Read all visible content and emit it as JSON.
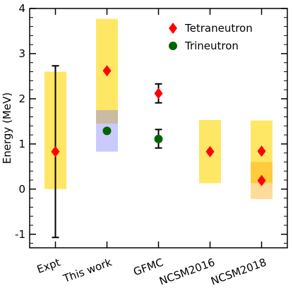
{
  "chart_data": {
    "type": "scatter",
    "title": "",
    "xlabel": "",
    "ylabel": "Energy (MeV)",
    "ylim": [
      -1.3,
      4.0
    ],
    "yticks": [
      -1,
      0,
      1,
      2,
      3,
      4
    ],
    "categories": [
      "Expt",
      "This work",
      "GFMC",
      "NCSM2016",
      "NCSM2018"
    ],
    "legend": {
      "placement": "top-right",
      "entries": [
        {
          "label": "Tetraneutron",
          "marker": "diamond",
          "color": "#ff0000"
        },
        {
          "label": "Trineutron",
          "marker": "circle",
          "color": "#006400"
        }
      ]
    },
    "bands": [
      {
        "category": "Expt",
        "low": 0.0,
        "high": 2.6,
        "color": "#ffd700",
        "opacity": 0.6
      },
      {
        "category": "This work",
        "low": 1.45,
        "high": 3.77,
        "color": "#ffd700",
        "opacity": 0.6
      },
      {
        "category": "This work",
        "low": 0.83,
        "high": 1.75,
        "color": "#7b7bff",
        "opacity": 0.4
      },
      {
        "category": "NCSM2016",
        "low": 0.13,
        "high": 1.53,
        "color": "#ffd700",
        "opacity": 0.6
      },
      {
        "category": "NCSM2018",
        "low": 0.13,
        "high": 1.52,
        "color": "#ffd700",
        "opacity": 0.6
      },
      {
        "category": "NCSM2018",
        "low": -0.22,
        "high": 0.6,
        "color": "#ffa500",
        "opacity": 0.4
      }
    ],
    "series": [
      {
        "name": "Tetraneutron",
        "marker": "diamond",
        "color": "#ff0000",
        "points": [
          {
            "category": "Expt",
            "y": 0.83,
            "err_low": -1.07,
            "err_high": 2.73
          },
          {
            "category": "This work",
            "y": 2.62
          },
          {
            "category": "GFMC",
            "y": 2.12,
            "err_low": 1.91,
            "err_high": 2.33
          },
          {
            "category": "NCSM2016",
            "y": 0.83
          },
          {
            "category": "NCSM2018",
            "y": 0.84
          },
          {
            "category": "NCSM2018",
            "y": 0.19
          }
        ]
      },
      {
        "name": "Trineutron",
        "marker": "circle",
        "color": "#006400",
        "points": [
          {
            "category": "This work",
            "y": 1.29
          },
          {
            "category": "GFMC",
            "y": 1.11,
            "err_low": 0.91,
            "err_high": 1.32
          }
        ]
      }
    ]
  }
}
